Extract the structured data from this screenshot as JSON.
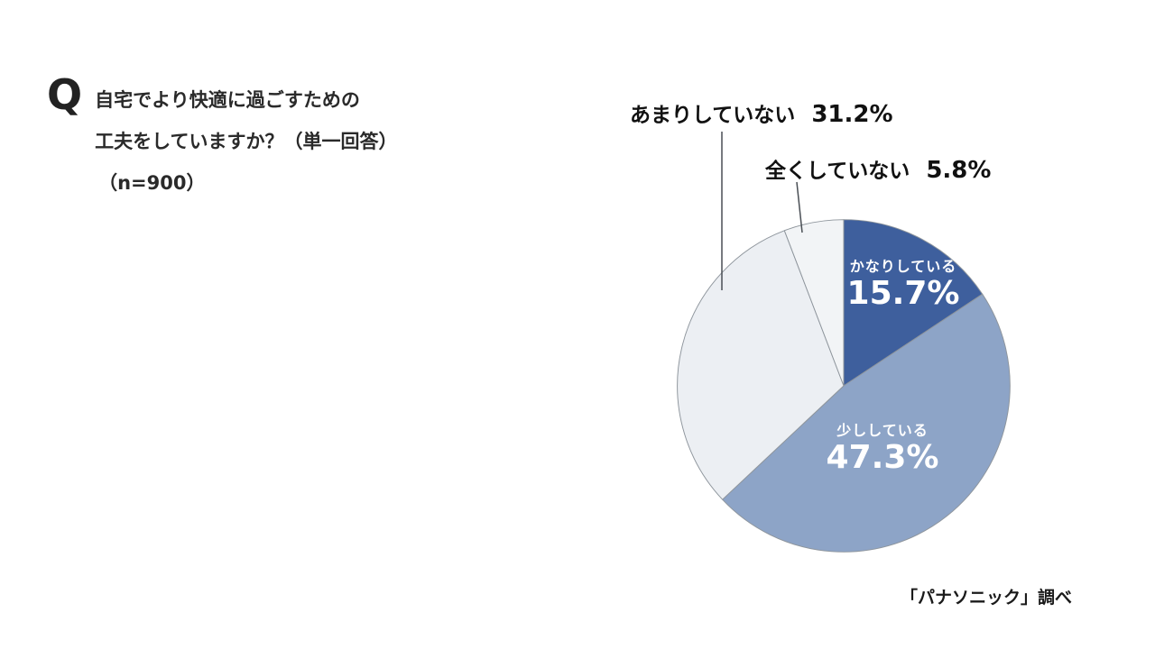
{
  "question": {
    "q_mark": "Q",
    "lines": [
      "自宅でより快適に過ごすための",
      "工夫をしていますか？（単一回答）",
      "（n=900）"
    ]
  },
  "source": "「パナソニック」調べ",
  "chart_data": {
    "type": "pie",
    "title": "自宅でより快適に過ごすための工夫をしていますか？（単一回答）",
    "n_label": "（n=900）",
    "n": 900,
    "start_angle_deg": 0,
    "direction": "clockwise",
    "value_suffix": "%",
    "stroke_color": "#8e959c",
    "slices": [
      {
        "label": "かなりしている",
        "value": 15.7,
        "display_value": "15.7%",
        "color": "#3e5f9d",
        "label_position": "inside",
        "text_color": "#ffffff"
      },
      {
        "label": "少ししている",
        "value": 47.3,
        "display_value": "47.3%",
        "color": "#8da4c7",
        "label_position": "inside",
        "text_color": "#ffffff"
      },
      {
        "label": "あまりしていない",
        "value": 31.2,
        "display_value": "31.2%",
        "color": "#eceff3",
        "label_position": "outside",
        "text_color": "#111111"
      },
      {
        "label": "全くしていない",
        "value": 5.8,
        "display_value": "5.8%",
        "color": "#f2f4f6",
        "label_position": "outside",
        "text_color": "#111111"
      }
    ]
  }
}
